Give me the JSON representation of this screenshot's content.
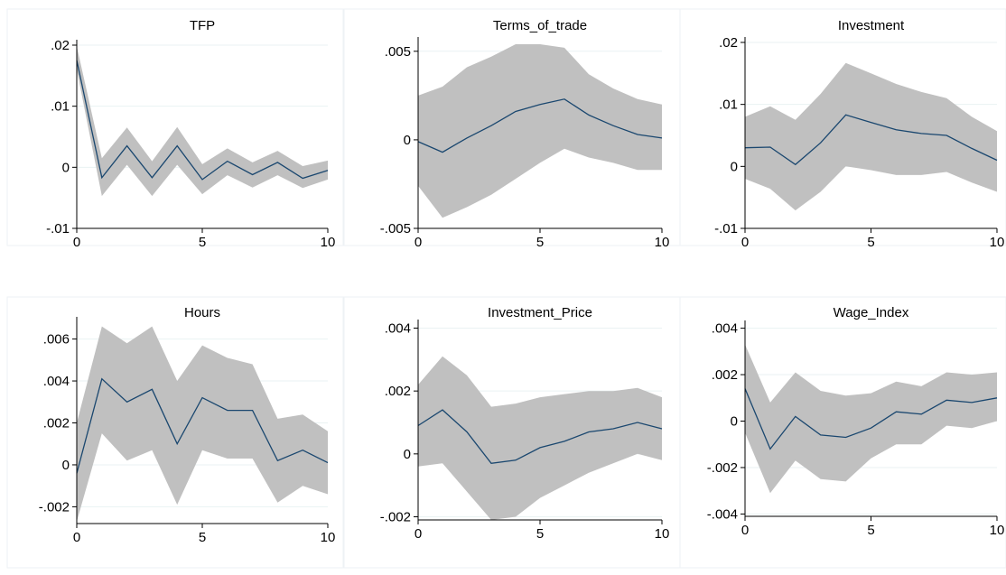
{
  "figure": {
    "background": "#ffffff",
    "panel_border": "#eef2f5",
    "band_color": "#c0c0c0",
    "line_color": "#1a476f",
    "grid_color": "#eaf2f3"
  },
  "chart_data": [
    {
      "type": "area",
      "title": "TFP",
      "xlabel": "",
      "ylabel": "",
      "xlim": [
        0,
        10
      ],
      "ylim": [
        -0.01,
        0.02
      ],
      "xticks": [
        0,
        5,
        10
      ],
      "xtick_labels": [
        "0",
        "5",
        "10"
      ],
      "yticks": [
        -0.01,
        0,
        0.01,
        0.02
      ],
      "ytick_labels": [
        "-.01",
        "0",
        ".01",
        ".02"
      ],
      "x": [
        0,
        1,
        2,
        3,
        4,
        5,
        6,
        7,
        8,
        9,
        10
      ],
      "series": [
        {
          "values": [
            0.0175,
            -0.0017,
            0.0035,
            -0.0017,
            0.0035,
            -0.002,
            0.001,
            -0.0012,
            0.0008,
            -0.0018,
            -0.0005
          ]
        },
        {
          "values": [
            0.0198,
            0.0015,
            0.0065,
            0.001,
            0.0066,
            0.0005,
            0.0031,
            0.0008,
            0.0027,
            0.0002,
            0.0011
          ]
        },
        {
          "values": [
            0.016,
            -0.0047,
            0.0004,
            -0.0047,
            0.0004,
            -0.0044,
            -0.0013,
            -0.0033,
            -0.0013,
            -0.0034,
            -0.002
          ]
        }
      ]
    },
    {
      "type": "area",
      "title": "Terms_of_trade",
      "xlabel": "",
      "ylabel": "",
      "xlim": [
        0,
        10
      ],
      "ylim": [
        -0.005,
        0.0055
      ],
      "xticks": [
        0,
        5,
        10
      ],
      "xtick_labels": [
        "0",
        "5",
        "10"
      ],
      "yticks": [
        -0.005,
        0,
        0.005
      ],
      "ytick_labels": [
        "-.005",
        "0",
        ".005"
      ],
      "x": [
        0,
        1,
        2,
        3,
        4,
        5,
        6,
        7,
        8,
        9,
        10
      ],
      "series": [
        {
          "values": [
            -0.0001,
            -0.0007,
            0.0001,
            0.0008,
            0.0016,
            0.002,
            0.0023,
            0.0014,
            0.0008,
            0.0003,
            0.0001
          ]
        },
        {
          "values": [
            0.0025,
            0.003,
            0.0041,
            0.0047,
            0.0054,
            0.0054,
            0.0052,
            0.0037,
            0.0029,
            0.0023,
            0.002
          ]
        },
        {
          "values": [
            -0.0026,
            -0.0044,
            -0.0038,
            -0.0031,
            -0.0022,
            -0.0013,
            -0.0005,
            -0.001,
            -0.0013,
            -0.0017,
            -0.0017
          ]
        }
      ]
    },
    {
      "type": "area",
      "title": "Investment",
      "xlabel": "",
      "ylabel": "",
      "xlim": [
        0,
        10
      ],
      "ylim": [
        -0.01,
        0.02
      ],
      "xticks": [
        0,
        5,
        10
      ],
      "xtick_labels": [
        "0",
        "5",
        "10"
      ],
      "yticks": [
        -0.01,
        0,
        0.01,
        0.02
      ],
      "ytick_labels": [
        "-.01",
        "0",
        ".01",
        ".02"
      ],
      "x": [
        0,
        1,
        2,
        3,
        4,
        5,
        6,
        7,
        8,
        9,
        10
      ],
      "series": [
        {
          "values": [
            0.003,
            0.0031,
            0.0003,
            0.0038,
            0.0083,
            0.0071,
            0.0059,
            0.0053,
            0.005,
            0.0029,
            0.001
          ]
        },
        {
          "values": [
            0.008,
            0.0097,
            0.0075,
            0.0117,
            0.0167,
            0.015,
            0.0133,
            0.012,
            0.011,
            0.008,
            0.0057
          ]
        },
        {
          "values": [
            -0.002,
            -0.0036,
            -0.0071,
            -0.0041,
            0.0,
            -0.0006,
            -0.0014,
            -0.0014,
            -0.0009,
            -0.0026,
            -0.0041
          ]
        }
      ]
    },
    {
      "type": "area",
      "title": "Hours",
      "xlabel": "",
      "ylabel": "",
      "xlim": [
        0,
        10
      ],
      "ylim": [
        -0.0028,
        0.0068
      ],
      "xticks": [
        0,
        5,
        10
      ],
      "xtick_labels": [
        "0",
        "5",
        "10"
      ],
      "yticks": [
        -0.002,
        0,
        0.002,
        0.004,
        0.006
      ],
      "ytick_labels": [
        "-.002",
        "0",
        ".002",
        ".004",
        ".006"
      ],
      "x": [
        0,
        1,
        2,
        3,
        4,
        5,
        6,
        7,
        8,
        9,
        10
      ],
      "series": [
        {
          "values": [
            -0.0004,
            0.0041,
            0.003,
            0.0036,
            0.001,
            0.0032,
            0.0026,
            0.0026,
            0.0002,
            0.0007,
            0.0001
          ]
        },
        {
          "values": [
            0.002,
            0.0066,
            0.0058,
            0.0066,
            0.004,
            0.0057,
            0.0051,
            0.0048,
            0.0022,
            0.0024,
            0.0016
          ]
        },
        {
          "values": [
            -0.0027,
            0.0015,
            0.0002,
            0.0007,
            -0.0019,
            0.0007,
            0.0003,
            0.0003,
            -0.0018,
            -0.001,
            -0.0014
          ]
        }
      ]
    },
    {
      "type": "area",
      "title": "Investment_Price",
      "xlabel": "",
      "ylabel": "",
      "xlim": [
        0,
        10
      ],
      "ylim": [
        -0.0021,
        0.0041
      ],
      "xticks": [
        0,
        5,
        10
      ],
      "xtick_labels": [
        "0",
        "5",
        "10"
      ],
      "yticks": [
        -0.002,
        0,
        0.002,
        0.004
      ],
      "ytick_labels": [
        "-.002",
        "0",
        ".002",
        ".004"
      ],
      "x": [
        0,
        1,
        2,
        3,
        4,
        5,
        6,
        7,
        8,
        9,
        10
      ],
      "series": [
        {
          "values": [
            0.0009,
            0.0014,
            0.0007,
            -0.0003,
            -0.0002,
            0.0002,
            0.0004,
            0.0007,
            0.0008,
            0.001,
            0.0008
          ]
        },
        {
          "values": [
            0.0022,
            0.0031,
            0.0025,
            0.0015,
            0.0016,
            0.0018,
            0.0019,
            0.002,
            0.002,
            0.0021,
            0.0018
          ]
        },
        {
          "values": [
            -0.0004,
            -0.0003,
            -0.0012,
            -0.0021,
            -0.002,
            -0.0014,
            -0.001,
            -0.0006,
            -0.0003,
            0.0,
            -0.0002
          ]
        }
      ]
    },
    {
      "type": "area",
      "title": "Wage_Index",
      "xlabel": "",
      "ylabel": "",
      "xlim": [
        0,
        10
      ],
      "ylim": [
        -0.0041,
        0.0041
      ],
      "xticks": [
        0,
        5,
        10
      ],
      "xtick_labels": [
        "0",
        "5",
        "10"
      ],
      "yticks": [
        -0.004,
        -0.002,
        0,
        0.002,
        0.004
      ],
      "ytick_labels": [
        "-.004",
        "-.002",
        "0",
        ".002",
        ".004"
      ],
      "x": [
        0,
        1,
        2,
        3,
        4,
        5,
        6,
        7,
        8,
        9,
        10
      ],
      "series": [
        {
          "values": [
            0.0014,
            -0.0012,
            0.0002,
            -0.0006,
            -0.0007,
            -0.0003,
            0.0004,
            0.0003,
            0.0009,
            0.0008,
            0.001
          ]
        },
        {
          "values": [
            0.0033,
            0.0008,
            0.0021,
            0.0013,
            0.0011,
            0.0012,
            0.0017,
            0.0015,
            0.0021,
            0.002,
            0.0021
          ]
        },
        {
          "values": [
            -0.0005,
            -0.0031,
            -0.0017,
            -0.0025,
            -0.0026,
            -0.0016,
            -0.001,
            -0.001,
            -0.0002,
            -0.0003,
            0.0
          ]
        }
      ]
    }
  ]
}
